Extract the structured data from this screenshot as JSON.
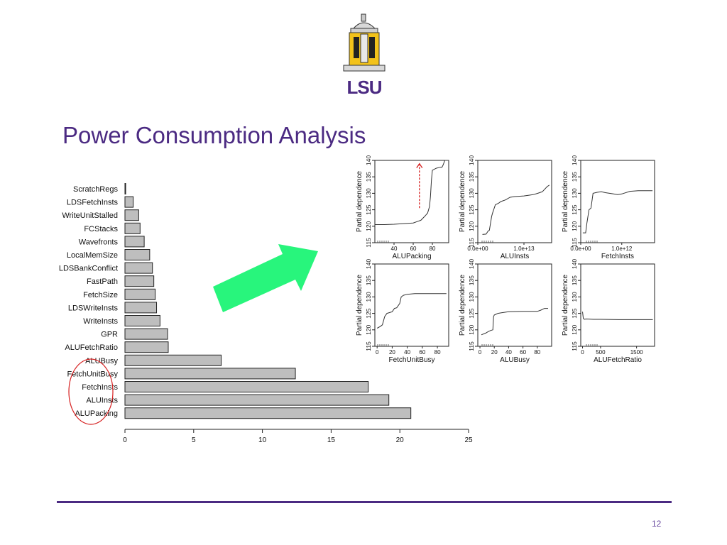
{
  "slide": {
    "title": "Power Consumption Analysis",
    "page_number": "12",
    "logo_text": "LSU",
    "colors": {
      "accent": "#4b2a82",
      "arrow": "#28f57c",
      "bar_fill": "#bebebe",
      "highlight": "#d62020",
      "logo_gold": "#f2c21a"
    }
  },
  "chart_data": [
    {
      "type": "bar",
      "orientation": "horizontal",
      "categories": [
        "ScratchRegs",
        "LDSFetchInsts",
        "WriteUnitStalled",
        "FCStacks",
        "Wavefronts",
        "LocalMemSize",
        "LDSBankConflict",
        "FastPath",
        "FetchSize",
        "LDSWriteInsts",
        "WriteInsts",
        "GPR",
        "ALUFetchRatio",
        "ALUBusy",
        "FetchUnitBusy",
        "FetchInsts",
        "ALUInsts",
        "ALUPacking"
      ],
      "values": [
        0.05,
        0.6,
        1.0,
        1.1,
        1.4,
        1.8,
        2.0,
        2.1,
        2.2,
        2.3,
        2.55,
        3.1,
        3.15,
        7.0,
        12.4,
        17.7,
        19.2,
        20.8
      ],
      "xlim": [
        0,
        25
      ],
      "xticks": [
        "0",
        "5",
        "10",
        "15",
        "20",
        "25"
      ],
      "highlight": "red ellipse around FetchUnitBusy, FetchInsts, ALUInsts, ALUPacking"
    },
    {
      "type": "line",
      "ylabel": "Partial dependence",
      "xlabel": "ALUPacking",
      "ylim": [
        115,
        140
      ],
      "yticks": [
        "115",
        "120",
        "125",
        "130",
        "135",
        "140"
      ],
      "xticks": [
        "40",
        "60",
        "80"
      ],
      "xlim": [
        20,
        97
      ],
      "x": [
        20,
        30,
        40,
        50,
        60,
        65,
        68,
        72,
        75,
        77,
        78,
        79,
        80,
        84,
        88,
        90,
        91,
        93,
        95,
        97
      ],
      "y": [
        120.5,
        120.5,
        120.6,
        120.8,
        121.0,
        121.5,
        121.8,
        123.0,
        124.0,
        126.0,
        129.0,
        134.0,
        137.0,
        137.6,
        137.9,
        137.9,
        138.5,
        140.0,
        140.0,
        140.0
      ],
      "annotation": "red dashed arrow pointing up"
    },
    {
      "type": "line",
      "ylabel": "Partial dependence",
      "xlabel": "ALUInsts",
      "ylim": [
        115,
        140
      ],
      "yticks": [
        "115",
        "120",
        "125",
        "130",
        "135",
        "140"
      ],
      "xticks": [
        "0.0e+00",
        "1.0e+13"
      ],
      "xlim": [
        0,
        16000000000000.0
      ],
      "x": [
        1000000000000.0,
        1800000000000.0,
        2200000000000.0,
        2500000000000.0,
        3000000000000.0,
        3200000000000.0,
        3800000000000.0,
        4500000000000.0,
        5000000000000.0,
        6000000000000.0,
        7000000000000.0,
        8000000000000.0,
        10000000000000.0,
        12000000000000.0,
        13000000000000.0,
        14000000000000.0,
        15000000000000.0,
        15500000000000.0
      ],
      "y": [
        117.5,
        117.6,
        118.5,
        118.8,
        123.0,
        124.0,
        126.5,
        127.0,
        127.5,
        128.0,
        128.8,
        129.0,
        129.2,
        129.6,
        130.0,
        130.5,
        132.0,
        132.5
      ]
    },
    {
      "type": "line",
      "ylabel": "Partial dependence",
      "xlabel": "FetchInsts",
      "ylim": [
        115,
        140
      ],
      "yticks": [
        "115",
        "120",
        "125",
        "130",
        "135",
        "140"
      ],
      "xticks": [
        "0.0e+00",
        "1.0e+12"
      ],
      "xlim": [
        0,
        1800000000000.0
      ],
      "x": [
        50000000000.0,
        120000000000.0,
        150000000000.0,
        200000000000.0,
        250000000000.0,
        300000000000.0,
        400000000000.0,
        500000000000.0,
        600000000000.0,
        800000000000.0,
        900000000000.0,
        1000000000000.0,
        1200000000000.0,
        1400000000000.0,
        1600000000000.0,
        1750000000000.0
      ],
      "y": [
        118.0,
        118.0,
        121.0,
        125.0,
        125.5,
        130.0,
        130.3,
        130.5,
        130.2,
        129.8,
        129.6,
        129.8,
        130.6,
        130.8,
        130.8,
        130.8
      ]
    },
    {
      "type": "line",
      "ylabel": "Partial dependence",
      "xlabel": "FetchUnitBusy",
      "ylim": [
        115,
        140
      ],
      "yticks": [
        "115",
        "120",
        "125",
        "130",
        "135",
        "140"
      ],
      "xticks": [
        "0",
        "20",
        "40",
        "60",
        "80"
      ],
      "xlim": [
        -3,
        95
      ],
      "x": [
        0,
        4,
        7,
        10,
        13,
        20,
        23,
        26,
        30,
        32,
        35,
        40,
        50,
        70,
        92
      ],
      "y": [
        120.5,
        121.0,
        121.5,
        124.0,
        125.0,
        125.5,
        126.5,
        126.7,
        128.0,
        130.0,
        130.5,
        130.8,
        131.0,
        131.0,
        131.0
      ]
    },
    {
      "type": "line",
      "ylabel": "Partial dependence",
      "xlabel": "ALUBusy",
      "ylim": [
        115,
        140
      ],
      "yticks": [
        "115",
        "120",
        "125",
        "130",
        "135",
        "140"
      ],
      "xticks": [
        "0",
        "20",
        "40",
        "60",
        "80"
      ],
      "xlim": [
        -3,
        100
      ],
      "x": [
        2,
        8,
        12,
        15,
        18,
        19,
        20,
        22,
        25,
        30,
        40,
        60,
        80,
        85,
        90,
        95
      ],
      "y": [
        118.5,
        119.0,
        119.5,
        119.8,
        120.0,
        124.0,
        124.5,
        124.7,
        125.0,
        125.2,
        125.5,
        125.6,
        125.6,
        126.0,
        126.5,
        126.5
      ]
    },
    {
      "type": "line",
      "ylabel": "Partial dependence",
      "xlabel": "ALUFetchRatio",
      "ylim": [
        115,
        140
      ],
      "yticks": [
        "115",
        "120",
        "125",
        "130",
        "135",
        "140"
      ],
      "xticks": [
        "0",
        "500",
        "1500"
      ],
      "xlim": [
        -50,
        2000
      ],
      "x": [
        0,
        20,
        50,
        100,
        300,
        500,
        1000,
        1500,
        1950
      ],
      "y": [
        125.5,
        123.5,
        123.2,
        123.3,
        123.2,
        123.2,
        123.1,
        123.1,
        123.1
      ]
    }
  ]
}
